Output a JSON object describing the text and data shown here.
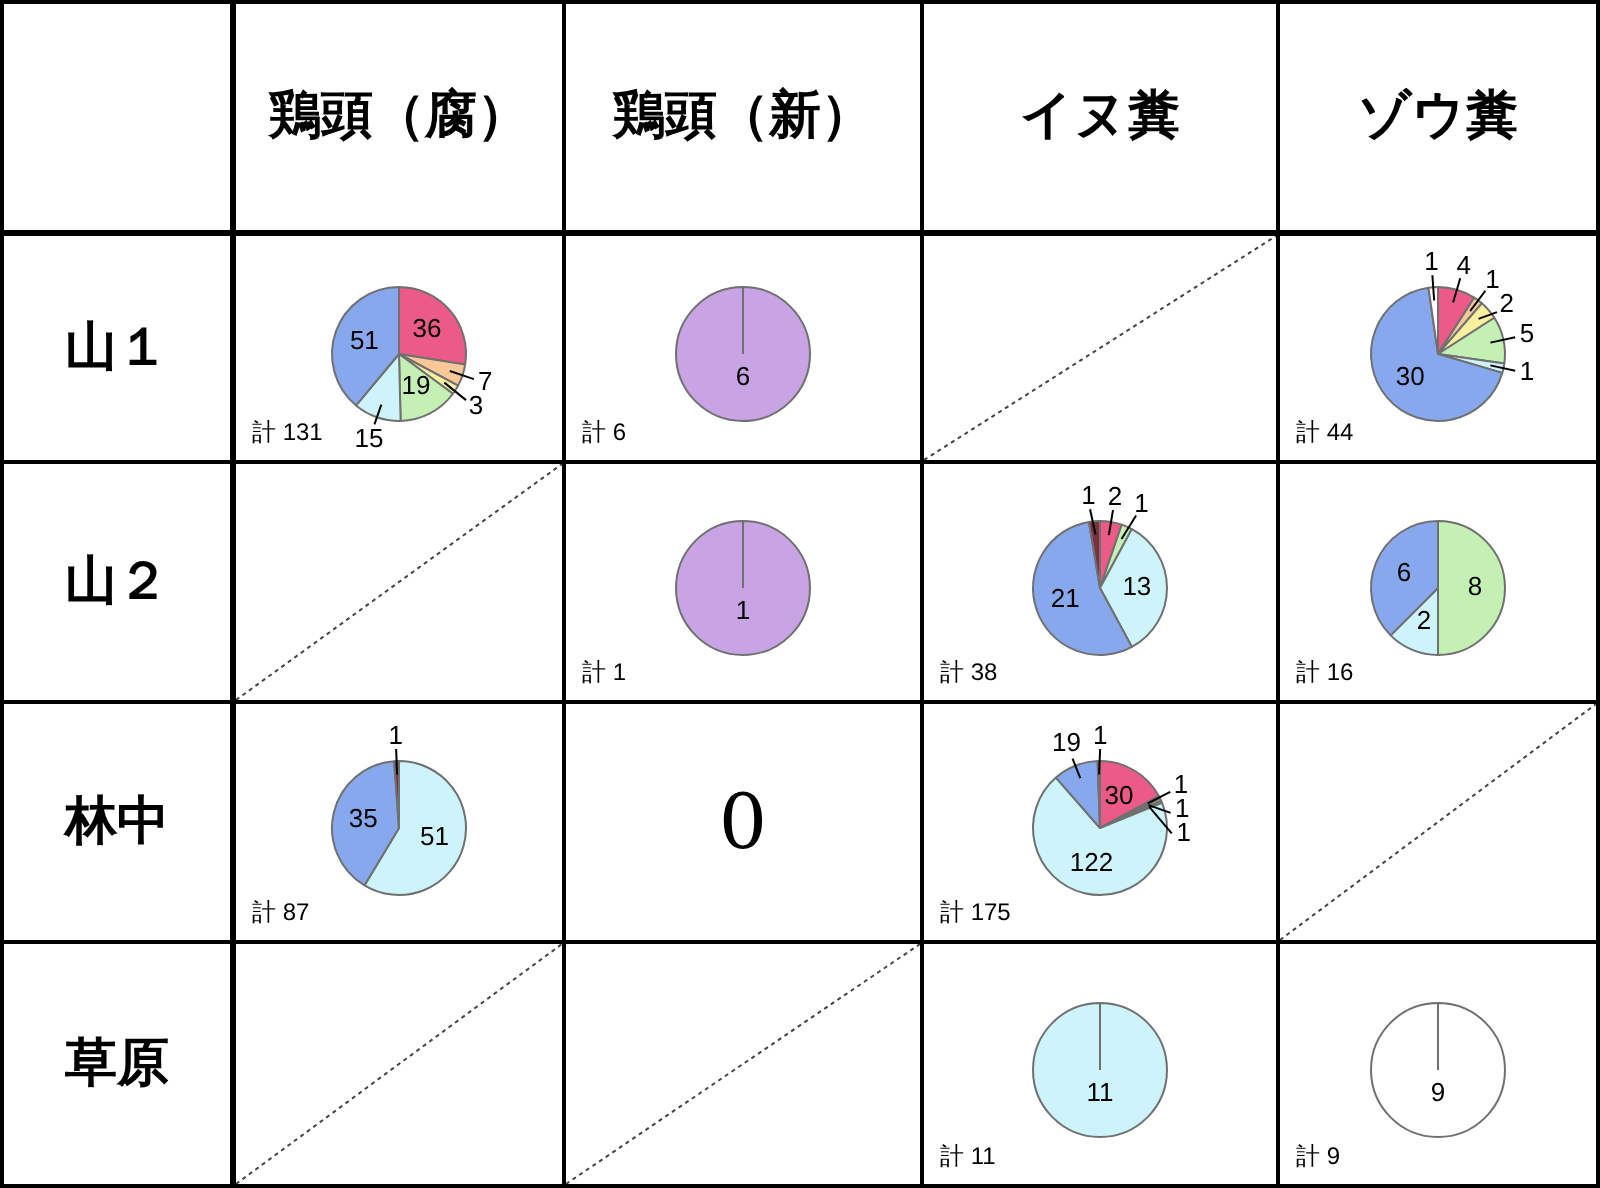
{
  "chart_data": [
    {
      "type": "other",
      "categories": [
        "鶏頭（腐）",
        "鶏頭（新）",
        "イヌ糞",
        "ゾウ糞"
      ],
      "y_categories": [
        "山１",
        "山２",
        "林中",
        "草原"
      ]
    },
    {
      "type": "pie",
      "categories": [
        null,
        null,
        null,
        null,
        null,
        null
      ],
      "values": [
        36,
        7,
        3,
        19,
        15,
        51
      ],
      "colors": [
        "#ec5a88",
        "#f8c898",
        "#f8f09c",
        "#c4f0b4",
        "#ccf4fa",
        "#88a8ee"
      ],
      "data_labels": true,
      "annotations": [
        "計 131"
      ]
    },
    {
      "type": "pie",
      "categories": [
        null
      ],
      "values": [
        6
      ],
      "colors": [
        "#c8a4e4"
      ],
      "data_labels": true,
      "annotations": [
        "計 6"
      ]
    },
    {
      "type": "pie",
      "categories": [
        null,
        null,
        null,
        null,
        null,
        null,
        null
      ],
      "values": [
        4,
        1,
        2,
        5,
        1,
        30,
        1
      ],
      "colors": [
        "#ec5a88",
        "#f8c898",
        "#f8f09c",
        "#c4f0b4",
        "#ccf4fa",
        "#88a8ee",
        "#ffffff"
      ],
      "data_labels": true,
      "annotations": [
        "計 44"
      ]
    },
    {
      "type": "pie",
      "categories": [
        null
      ],
      "values": [
        1
      ],
      "colors": [
        "#c8a4e4"
      ],
      "data_labels": true,
      "annotations": [
        "計 1"
      ]
    },
    {
      "type": "pie",
      "categories": [
        null,
        null,
        null,
        null,
        null
      ],
      "values": [
        2,
        1,
        13,
        21,
        1
      ],
      "colors": [
        "#ec5a88",
        "#c4f0b4",
        "#ccf4fa",
        "#88a8ee",
        "#7c3040"
      ],
      "data_labels": true,
      "annotations": [
        "計 38"
      ]
    },
    {
      "type": "pie",
      "categories": [
        null,
        null,
        null
      ],
      "values": [
        8,
        2,
        6
      ],
      "colors": [
        "#c4f0b4",
        "#ccf4fa",
        "#88a8ee"
      ],
      "data_labels": true,
      "annotations": [
        "計 16"
      ]
    },
    {
      "type": "pie",
      "categories": [
        null,
        null,
        null
      ],
      "values": [
        51,
        35,
        1
      ],
      "colors": [
        "#ccf4fa",
        "#88a8ee",
        "#7c3040"
      ],
      "data_labels": true,
      "annotations": [
        "計 87"
      ]
    },
    {
      "type": "other",
      "annotations": [
        "0"
      ]
    },
    {
      "type": "pie",
      "categories": [
        null,
        null,
        null,
        null,
        null,
        null,
        null
      ],
      "values": [
        30,
        1,
        1,
        1,
        122,
        19,
        1
      ],
      "colors": [
        "#ec5a88",
        "#f8c898",
        "#f8f09c",
        "#c4f0b4",
        "#ccf4fa",
        "#88a8ee",
        "#7c3040"
      ],
      "data_labels": true,
      "annotations": [
        "計 175"
      ]
    },
    {
      "type": "pie",
      "categories": [
        null
      ],
      "values": [
        11
      ],
      "colors": [
        "#ccf4fa"
      ],
      "data_labels": true,
      "annotations": [
        "計 11"
      ]
    },
    {
      "type": "pie",
      "categories": [
        null
      ],
      "values": [
        9
      ],
      "colors": [
        "#ffffff"
      ],
      "data_labels": true,
      "annotations": [
        "計 9"
      ]
    }
  ]
}
